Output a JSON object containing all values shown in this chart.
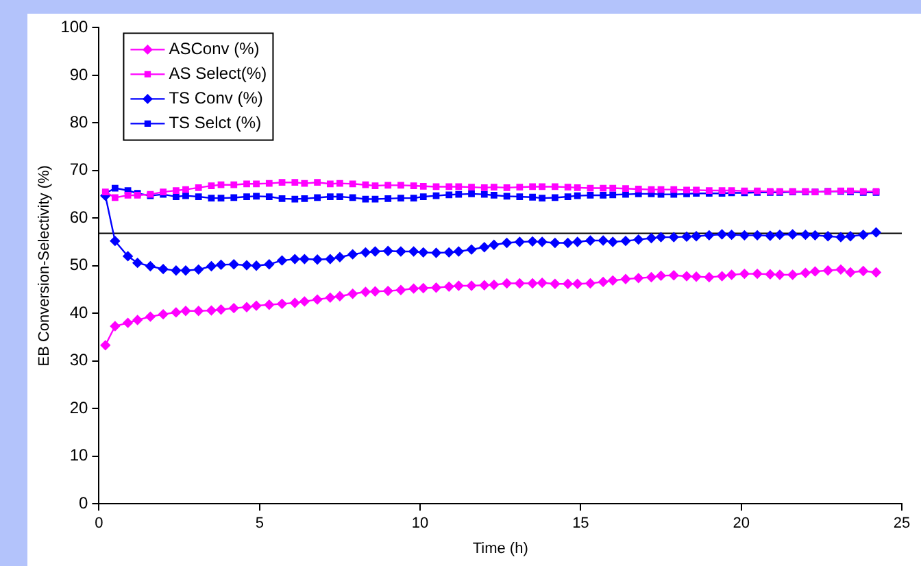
{
  "chart_data": {
    "type": "line",
    "xlabel": "Time (h)",
    "ylabel": "EB Conversion-Selectivity (%)",
    "x": [
      0.2,
      0.5,
      0.9,
      1.2,
      1.6,
      2.0,
      2.4,
      2.7,
      3.1,
      3.5,
      3.8,
      4.2,
      4.6,
      4.9,
      5.3,
      5.7,
      6.1,
      6.4,
      6.8,
      7.2,
      7.5,
      7.9,
      8.3,
      8.6,
      9.0,
      9.4,
      9.8,
      10.1,
      10.5,
      10.9,
      11.2,
      11.6,
      12.0,
      12.3,
      12.7,
      13.1,
      13.5,
      13.8,
      14.2,
      14.6,
      14.9,
      15.3,
      15.7,
      16.0,
      16.4,
      16.8,
      17.2,
      17.5,
      17.9,
      18.3,
      18.6,
      19.0,
      19.4,
      19.7,
      20.1,
      20.5,
      20.9,
      21.2,
      21.6,
      22.0,
      22.3,
      22.7,
      23.1,
      23.4,
      23.8,
      24.2
    ],
    "series": [
      {
        "name": "ASConv (%)",
        "color": "#ff00ff",
        "marker": "diamond",
        "values": [
          33.3,
          37.3,
          38,
          38.6,
          39.3,
          39.8,
          40.2,
          40.5,
          40.5,
          40.6,
          40.8,
          41.1,
          41.3,
          41.6,
          41.8,
          42,
          42.2,
          42.5,
          42.9,
          43.3,
          43.6,
          44.1,
          44.5,
          44.6,
          44.7,
          44.9,
          45.2,
          45.3,
          45.4,
          45.6,
          45.8,
          45.8,
          45.9,
          46,
          46.3,
          46.3,
          46.3,
          46.4,
          46.2,
          46.2,
          46.2,
          46.3,
          46.6,
          46.9,
          47.2,
          47.4,
          47.6,
          47.9,
          48,
          47.8,
          47.7,
          47.6,
          47.8,
          48.1,
          48.3,
          48.3,
          48.2,
          48.1,
          48.1,
          48.5,
          48.8,
          49,
          49.2,
          48.6,
          48.9,
          48.6
        ]
      },
      {
        "name": "AS Select(%)",
        "color": "#ff00ff",
        "marker": "square",
        "values": [
          65.5,
          64.3,
          64.8,
          64.8,
          65,
          65.5,
          65.8,
          66,
          66.4,
          66.8,
          67,
          67,
          67.2,
          67.2,
          67.3,
          67.5,
          67.5,
          67.3,
          67.5,
          67.2,
          67.3,
          67.2,
          67,
          66.8,
          66.9,
          66.9,
          66.8,
          66.7,
          66.6,
          66.6,
          66.6,
          66.5,
          66.4,
          66.5,
          66.4,
          66.5,
          66.6,
          66.6,
          66.6,
          66.5,
          66.4,
          66.3,
          66.3,
          66.3,
          66.2,
          66.1,
          66,
          66,
          66,
          65.9,
          65.9,
          65.8,
          65.8,
          65.8,
          65.7,
          65.7,
          65.6,
          65.6,
          65.6,
          65.6,
          65.5,
          65.6,
          65.7,
          65.7,
          65.6,
          65.6
        ]
      },
      {
        "name": "TS Conv (%)",
        "color": "#0000ff",
        "marker": "diamond",
        "values": [
          64.7,
          55.2,
          52,
          50.6,
          49.9,
          49.3,
          49,
          49,
          49.2,
          49.9,
          50.2,
          50.3,
          50.1,
          50,
          50.3,
          51.1,
          51.4,
          51.4,
          51.3,
          51.4,
          51.8,
          52.4,
          52.8,
          53,
          53.1,
          53,
          53,
          52.8,
          52.7,
          52.8,
          53,
          53.4,
          53.9,
          54.4,
          54.8,
          55,
          55.1,
          55,
          54.8,
          54.8,
          55,
          55.3,
          55.3,
          55,
          55.2,
          55.5,
          55.8,
          56,
          56,
          56.1,
          56.2,
          56.4,
          56.6,
          56.5,
          56.4,
          56.4,
          56.3,
          56.5,
          56.6,
          56.5,
          56.4,
          56.2,
          56,
          56.2,
          56.5,
          57
        ]
      },
      {
        "name": "TS Selct (%)",
        "color": "#0000ff",
        "marker": "square",
        "values": [
          65.2,
          66.3,
          65.8,
          65.2,
          64.7,
          65,
          64.5,
          64.7,
          64.5,
          64.2,
          64.2,
          64.3,
          64.5,
          64.6,
          64.5,
          64.1,
          64,
          64.1,
          64.3,
          64.5,
          64.5,
          64.3,
          64,
          64,
          64.1,
          64.2,
          64.2,
          64.5,
          64.7,
          64.9,
          65,
          65.1,
          65,
          64.8,
          64.6,
          64.5,
          64.4,
          64.2,
          64.3,
          64.5,
          64.7,
          64.8,
          64.8,
          64.9,
          65,
          65.1,
          65.1,
          65,
          65,
          65.1,
          65.2,
          65.2,
          65.2,
          65.3,
          65.3,
          65.4,
          65.4,
          65.4,
          65.5,
          65.5,
          65.5,
          65.6,
          65.6,
          65.5,
          65.4,
          65.4
        ]
      }
    ],
    "xlim": [
      0,
      25
    ],
    "xticks": [
      0,
      5,
      10,
      15,
      20,
      25
    ],
    "ylim": [
      0,
      100
    ],
    "yticks": [
      0,
      10,
      20,
      30,
      40,
      50,
      60,
      70,
      80,
      90,
      100
    ],
    "ref_lines": [
      {
        "axis": "y",
        "value": 56.8,
        "color": "#000000"
      }
    ],
    "grid": false,
    "legend": "top left",
    "line_style": "solid"
  }
}
